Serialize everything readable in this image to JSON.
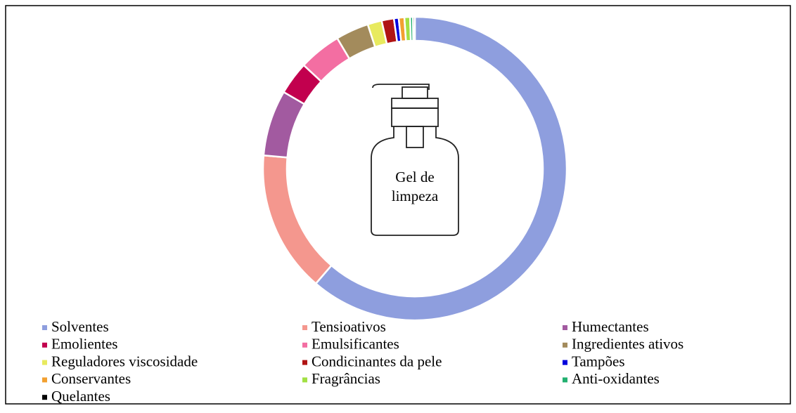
{
  "chart_data": {
    "type": "donut",
    "annotations": [
      "Gel de",
      "limpeza"
    ],
    "categories": [
      "Solventes",
      "Tensioativos",
      "Humectantes",
      "Emolientes",
      "Emulsificantes",
      "Ingredientes ativos",
      "Reguladores viscosidade",
      "Condicinantes da pele",
      "Tampões",
      "Conservantes",
      "Fragrâncias",
      "Anti-oxidantes",
      "Quelantes"
    ],
    "values": [
      61,
      15,
      7,
      3.5,
      4.5,
      3.5,
      1.5,
      1.3,
      0.5,
      0.6,
      0.6,
      0.3,
      0.2
    ],
    "colors": [
      "#8e9ede",
      "#f4978e",
      "#a25aa0",
      "#c2004e",
      "#f36ea2",
      "#a38b5c",
      "#e8ea5e",
      "#b01414",
      "#0000dd",
      "#f2a030",
      "#a2e044",
      "#22b070",
      "#000000"
    ],
    "legend": "bottom"
  }
}
